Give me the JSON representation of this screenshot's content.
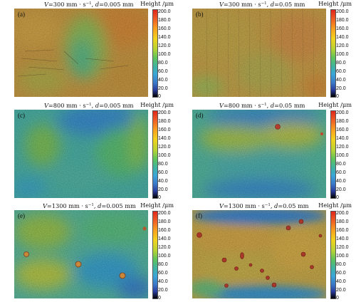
{
  "colorbar": {
    "title": "Height /μm",
    "ticks": [
      "200.0",
      "180.0",
      "160.0",
      "140.0",
      "120.0",
      "100.0",
      "80.0",
      "60.0",
      "40.0",
      "20.0",
      "0"
    ]
  },
  "panels": [
    {
      "id": "a",
      "label": "(a)",
      "speed_label": "V",
      "speed": "=300 mm · s",
      "speed_exp": "−1",
      "sep": ", ",
      "depth_label": "d",
      "depth": "=0.005 mm"
    },
    {
      "id": "b",
      "label": "(b)",
      "speed_label": "V",
      "speed": "=300 mm · s",
      "speed_exp": "−1",
      "sep": ", ",
      "depth_label": "d",
      "depth": "=0.05 mm"
    },
    {
      "id": "c",
      "label": "(c)",
      "speed_label": "V",
      "speed": "=800 mm · s",
      "speed_exp": "−1",
      "sep": ", ",
      "depth_label": "d",
      "depth": "=0.005 mm"
    },
    {
      "id": "d",
      "label": "(d)",
      "speed_label": "V",
      "speed": "=800 mm · s",
      "speed_exp": "−1",
      "sep": ", ",
      "depth_label": "d",
      "depth": "=0.05 mm"
    },
    {
      "id": "e",
      "label": "(e)",
      "speed_label": "V",
      "speed": "=1300 mm · s",
      "speed_exp": "−1",
      "sep": ", ",
      "depth_label": "d",
      "depth": "=0.005 mm"
    },
    {
      "id": "f",
      "label": "(f)",
      "speed_label": "V",
      "speed": "=1300 mm · s",
      "speed_exp": "−1",
      "sep": ", ",
      "depth_label": "d",
      "depth": "=0.05 mm"
    }
  ]
}
